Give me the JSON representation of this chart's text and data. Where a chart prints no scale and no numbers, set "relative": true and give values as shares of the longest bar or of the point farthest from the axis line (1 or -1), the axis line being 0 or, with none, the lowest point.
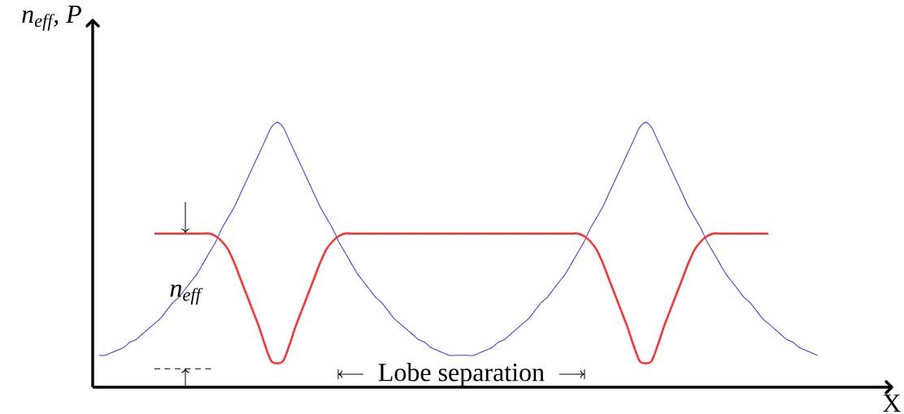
{
  "chart_data": {
    "type": "line",
    "relative": true,
    "xlabel": "X",
    "ylabel": "n$_{eff}$, P",
    "categories": [
      null,
      null,
      null,
      null,
      null,
      null,
      null,
      null,
      null,
      null,
      null,
      null,
      null,
      null,
      null,
      null,
      null,
      null,
      null,
      null,
      null,
      null,
      null,
      null,
      null,
      null,
      null,
      null,
      null,
      null,
      null,
      null,
      null,
      null,
      null,
      null,
      null,
      null,
      null,
      null,
      null,
      null,
      null,
      null,
      null,
      null,
      null,
      null,
      null,
      null,
      null,
      null,
      null,
      null,
      null,
      null,
      null,
      null,
      null,
      null,
      null,
      null,
      null,
      null,
      null,
      null,
      null,
      null,
      null,
      null,
      null,
      null,
      null,
      null,
      null,
      null,
      null,
      null,
      null,
      null,
      null,
      null,
      null,
      null,
      null,
      null,
      null,
      null,
      null,
      null,
      null,
      null,
      null,
      null,
      null,
      null,
      null,
      null,
      null,
      null,
      null,
      null,
      null,
      null,
      null,
      null,
      null,
      null,
      null,
      null,
      null,
      null,
      null,
      null,
      null,
      null,
      null,
      null
    ],
    "series": [
      {
        "color": "#3b3bff",
        "values": [
          0.12,
          0.12,
          0.13,
          0.14,
          0.15,
          0.17,
          0.18,
          0.2,
          0.22,
          0.24,
          0.26,
          0.29,
          0.32,
          0.34,
          0.37,
          0.4,
          0.43,
          0.47,
          0.51,
          0.55,
          0.6,
          0.64,
          0.68,
          0.73,
          0.78,
          0.83,
          0.88,
          0.93,
          0.98,
          1.0,
          0.98,
          0.93,
          0.88,
          0.83,
          0.78,
          0.73,
          0.68,
          0.64,
          0.6,
          0.55,
          0.51,
          0.47,
          0.43,
          0.4,
          0.37,
          0.34,
          0.32,
          0.29,
          0.26,
          0.24,
          0.22,
          0.2,
          0.18,
          0.17,
          0.15,
          0.14,
          0.13,
          0.12,
          0.12,
          0.12,
          0.12,
          0.12,
          0.13,
          0.14,
          0.15,
          0.17,
          0.18,
          0.2,
          0.22,
          0.24,
          0.26,
          0.29,
          0.32,
          0.34,
          0.37,
          0.4,
          0.43,
          0.47,
          0.51,
          0.55,
          0.6,
          0.64,
          0.68,
          0.73,
          0.78,
          0.83,
          0.88,
          0.93,
          0.98,
          1.0,
          0.98,
          0.93,
          0.88,
          0.83,
          0.78,
          0.73,
          0.68,
          0.64,
          0.6,
          0.55,
          0.51,
          0.47,
          0.43,
          0.4,
          0.37,
          0.34,
          0.32,
          0.29,
          0.26,
          0.24,
          0.22,
          0.2,
          0.18,
          0.17,
          0.15,
          0.14,
          0.13,
          0.12
        ]
      },
      {
        "color": "#ff3030",
        "values": [
          null,
          null,
          null,
          null,
          null,
          null,
          null,
          null,
          null,
          0.58,
          0.58,
          0.58,
          0.58,
          0.58,
          0.58,
          0.58,
          0.58,
          0.58,
          0.58,
          0.57,
          0.55,
          0.52,
          0.47,
          0.41,
          0.35,
          0.29,
          0.23,
          0.16,
          0.1,
          0.09,
          0.1,
          0.16,
          0.23,
          0.29,
          0.35,
          0.41,
          0.47,
          0.52,
          0.55,
          0.57,
          0.58,
          0.58,
          0.58,
          0.58,
          0.58,
          0.58,
          0.58,
          0.58,
          0.58,
          0.58,
          0.58,
          0.58,
          0.58,
          0.58,
          0.58,
          0.58,
          0.58,
          0.58,
          0.58,
          0.58,
          0.58,
          0.58,
          0.58,
          0.58,
          0.58,
          0.58,
          0.58,
          0.58,
          0.58,
          0.58,
          0.58,
          0.58,
          0.58,
          0.58,
          0.58,
          0.58,
          0.58,
          0.58,
          0.58,
          0.57,
          0.55,
          0.52,
          0.47,
          0.41,
          0.35,
          0.29,
          0.23,
          0.16,
          0.1,
          0.09,
          0.1,
          0.16,
          0.23,
          0.29,
          0.35,
          0.41,
          0.47,
          0.52,
          0.55,
          0.57,
          0.58,
          0.58,
          0.58,
          0.58,
          0.58,
          0.58,
          0.58,
          0.58,
          0.58,
          0.58,
          null,
          null,
          null,
          null,
          null,
          null,
          null,
          null
        ]
      }
    ],
    "ref_lines": [
      {
        "axis": "y",
        "value": 0.07,
        "line_style": "dashed",
        "color": "#000000"
      }
    ],
    "annotations": [
      "n$_{eff}$",
      "Lobe separation"
    ]
  }
}
